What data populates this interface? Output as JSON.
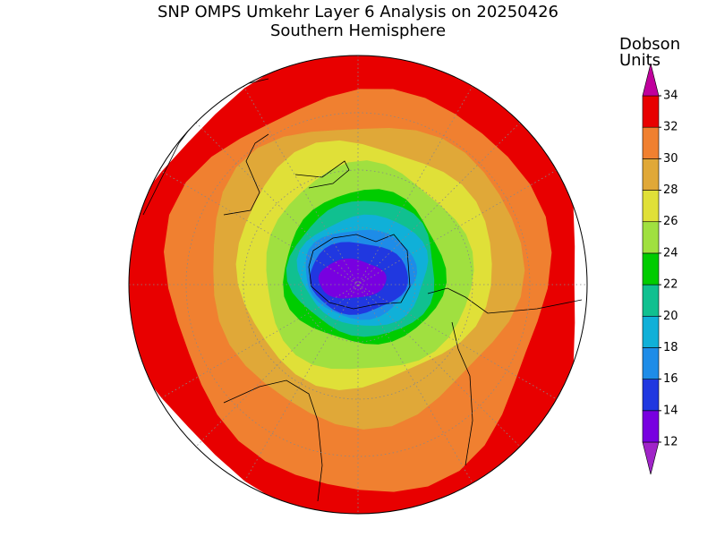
{
  "title": "SNP OMPS Umkehr Layer 6 Analysis on 20250426",
  "subtitle": "Southern Hemisphere",
  "colorbar": {
    "label_lines": [
      "Dobson",
      "Units"
    ],
    "ticks": [
      12,
      14,
      16,
      18,
      20,
      22,
      24,
      26,
      28,
      30,
      32,
      34
    ],
    "colors": [
      "#a024c8",
      "#7800e0",
      "#2038e0",
      "#1e8ce8",
      "#10b0d8",
      "#10c090",
      "#00cc00",
      "#a0e040",
      "#e0e038",
      "#e0a838",
      "#f08030",
      "#e80000",
      "#c0009c"
    ]
  }
}
